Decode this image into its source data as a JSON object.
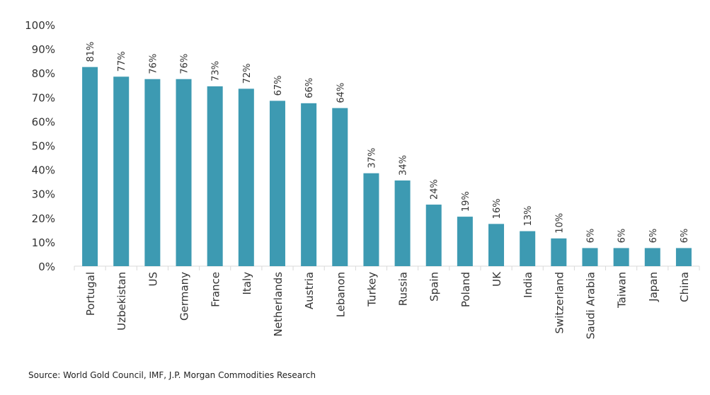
{
  "chart_data": {
    "type": "bar",
    "title": "",
    "xlabel": "",
    "ylabel": "",
    "ylim": [
      0,
      100
    ],
    "yticks": [
      "0%",
      "10%",
      "20%",
      "30%",
      "40%",
      "50%",
      "60%",
      "70%",
      "80%",
      "90%",
      "100%"
    ],
    "categories": [
      "Portugal",
      "Uzbekistan",
      "US",
      "Germany",
      "France",
      "Italy",
      "Netherlands",
      "Austria",
      "Lebanon",
      "Turkey",
      "Russia",
      "Spain",
      "Poland",
      "UK",
      "India",
      "Switzerland",
      "Saudi Arabia",
      "Taiwan",
      "Japan",
      "China"
    ],
    "values": [
      81,
      77,
      76,
      76,
      73,
      72,
      67,
      66,
      64,
      37,
      34,
      24,
      19,
      16,
      13,
      10,
      6,
      6,
      6,
      6
    ],
    "data_labels": [
      "81%",
      "77%",
      "76%",
      "76%",
      "73%",
      "72%",
      "67%",
      "66%",
      "64%",
      "37%",
      "34%",
      "24%",
      "19%",
      "16%",
      "13%",
      "10%",
      "6%",
      "6%",
      "6%",
      "6%"
    ],
    "color": "#3d9ab2",
    "grid": false
  },
  "source": "Source: World Gold Council, IMF, J.P. Morgan Commodities Research"
}
